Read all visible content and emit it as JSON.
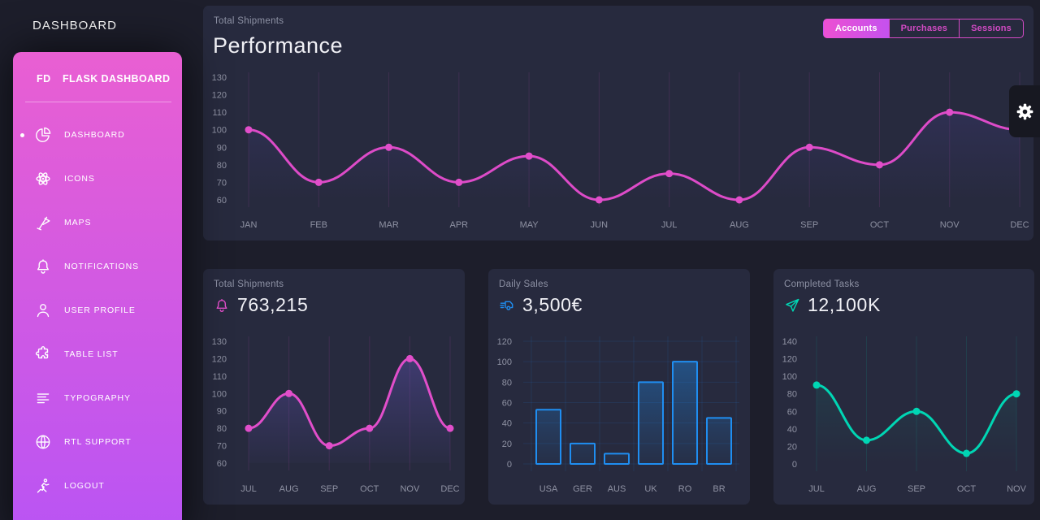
{
  "page": {
    "title": "DASHBOARD"
  },
  "sidebar": {
    "brand_mini": "FD",
    "brand": "FLASK DASHBOARD",
    "items": [
      {
        "label": "DASHBOARD",
        "icon": "pie-chart-icon",
        "active": true
      },
      {
        "label": "ICONS",
        "icon": "atom-icon",
        "active": false
      },
      {
        "label": "MAPS",
        "icon": "pin-icon",
        "active": false
      },
      {
        "label": "NOTIFICATIONS",
        "icon": "bell-icon",
        "active": false
      },
      {
        "label": "USER PROFILE",
        "icon": "user-icon",
        "active": false
      },
      {
        "label": "TABLE LIST",
        "icon": "puzzle-icon",
        "active": false
      },
      {
        "label": "TYPOGRAPHY",
        "icon": "align-left-icon",
        "active": false
      },
      {
        "label": "RTL SUPPORT",
        "icon": "globe-icon",
        "active": false
      },
      {
        "label": "LOGOUT",
        "icon": "runner-icon",
        "active": false
      }
    ]
  },
  "performance_card": {
    "subtitle": "Total Shipments",
    "title": "Performance",
    "buttons": [
      {
        "label": "Accounts",
        "active": true
      },
      {
        "label": "Purchases",
        "active": false
      },
      {
        "label": "Sessions",
        "active": false
      }
    ]
  },
  "stat_cards": [
    {
      "subtitle": "Total Shipments",
      "value": "763,215",
      "icon": "bell-icon",
      "accent": "#e14eca"
    },
    {
      "subtitle": "Daily Sales",
      "value": "3,500€",
      "icon": "delivery-icon",
      "accent": "#1f8ef1"
    },
    {
      "subtitle": "Completed Tasks",
      "value": "12,100K",
      "icon": "send-icon",
      "accent": "#00d6b4"
    }
  ],
  "settings_panel": {
    "icon": "gear-icon"
  },
  "colors": {
    "body_bg": "#1d1e2b",
    "card_bg": "#272a3e",
    "sidebar_gradient_top": "#e95fd2",
    "sidebar_gradient_bottom": "#b954f4",
    "accent_pink": "#e14eca",
    "accent_blue": "#1f8ef1",
    "accent_teal": "#00d6b4",
    "text_muted": "#8e92a5",
    "text_light": "#f1f1f6"
  },
  "chart_data": [
    {
      "id": "performance",
      "type": "line",
      "title": "Performance",
      "subtitle": "Total Shipments",
      "categories": [
        "JAN",
        "FEB",
        "MAR",
        "APR",
        "MAY",
        "JUN",
        "JUL",
        "AUG",
        "SEP",
        "OCT",
        "NOV",
        "DEC"
      ],
      "series": [
        {
          "name": "Accounts",
          "values": [
            100,
            70,
            90,
            70,
            85,
            60,
            75,
            60,
            90,
            80,
            110,
            100
          ]
        }
      ],
      "ylim": [
        60,
        130
      ],
      "yticks": [
        130,
        120,
        110,
        100,
        90,
        80,
        70,
        60
      ],
      "grid": "vertical",
      "legend": "none",
      "line_color": "#dd4bc8",
      "point_color": "#e14eca",
      "grid_color": "rgba(225,78,202,0.13)",
      "area_fill_top": "rgba(85,72,175,0.25)",
      "area_fill_bottom": "rgba(85,72,175,0)"
    },
    {
      "id": "total-shipments",
      "type": "line",
      "title": "763,215",
      "subtitle": "Total Shipments",
      "categories": [
        "JUL",
        "AUG",
        "SEP",
        "OCT",
        "NOV",
        "DEC"
      ],
      "series": [
        {
          "name": "Total Shipments",
          "values": [
            80,
            100,
            70,
            80,
            120,
            80
          ]
        }
      ],
      "ylim": [
        60,
        130
      ],
      "yticks": [
        130,
        120,
        110,
        100,
        90,
        80,
        70,
        60
      ],
      "grid": "vertical",
      "legend": "none",
      "line_color": "#e14eca",
      "point_color": "#e14eca",
      "grid_color": "rgba(225,78,202,0.13)",
      "area_fill_top": "rgba(104,88,198,0.42)",
      "area_fill_bottom": "rgba(104,88,198,0.03)"
    },
    {
      "id": "daily-sales",
      "type": "bar",
      "title": "3,500€",
      "subtitle": "Daily Sales",
      "categories": [
        "USA",
        "GER",
        "AUS",
        "UK",
        "RO",
        "BR"
      ],
      "series": [
        {
          "name": "Daily Sales",
          "values": [
            53,
            20,
            10,
            80,
            100,
            45
          ]
        }
      ],
      "ylim": [
        0,
        120
      ],
      "yticks": [
        120,
        100,
        80,
        60,
        40,
        20,
        0
      ],
      "grid": "both",
      "legend": "none",
      "bar_color": "#1f8ef1",
      "grid_color": "rgba(29,140,248,0.12)",
      "area_fill_top": "rgba(31,142,241,0.45)",
      "area_fill_bottom": "rgba(31,142,241,0.05)"
    },
    {
      "id": "completed-tasks",
      "type": "line",
      "title": "12,100K",
      "subtitle": "Completed Tasks",
      "categories": [
        "JUL",
        "AUG",
        "SEP",
        "OCT",
        "NOV"
      ],
      "series": [
        {
          "name": "Completed Tasks",
          "values": [
            90,
            27,
            60,
            12,
            80
          ]
        }
      ],
      "ylim": [
        0,
        140
      ],
      "yticks": [
        140,
        120,
        100,
        80,
        60,
        40,
        20,
        0
      ],
      "grid": "vertical",
      "legend": "none",
      "line_color": "#00d6b4",
      "point_color": "#00d6b4",
      "grid_color": "rgba(0,214,180,0.12)",
      "area_fill_top": "rgba(0,214,180,0.13)",
      "area_fill_bottom": "rgba(0,214,180,0)"
    }
  ]
}
